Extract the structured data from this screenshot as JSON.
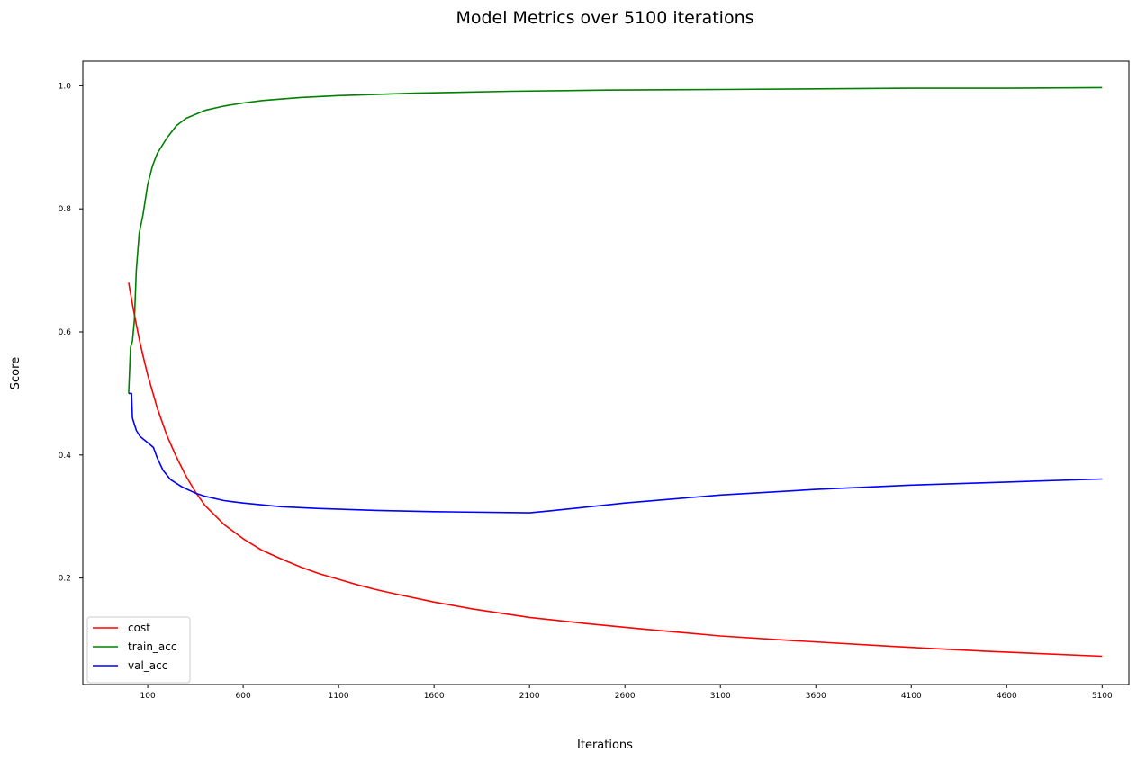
{
  "chart_data": {
    "type": "line",
    "title": "Model Metrics over 5100 iterations",
    "xlabel": "Iterations",
    "ylabel": "Score",
    "xlim": [
      -240,
      5240
    ],
    "ylim": [
      0.027,
      1.04
    ],
    "grid": false,
    "legend_position": "bottom-left",
    "x_ticks": [
      100,
      600,
      1100,
      1600,
      2100,
      2600,
      3100,
      3600,
      4100,
      4600,
      5100
    ],
    "x_tick_labels": [
      "100",
      "600",
      "1100",
      "1600",
      "2100",
      "2600",
      "3100",
      "3600",
      "4100",
      "4600",
      "5100"
    ],
    "y_ticks": [
      0.2,
      0.4,
      0.6,
      0.8,
      1.0
    ],
    "y_tick_labels": [
      "0.2",
      "0.4",
      "0.6",
      "0.8",
      "1.0"
    ],
    "series": [
      {
        "name": "cost",
        "color": "#ff0000",
        "points": [
          [
            0,
            0.68
          ],
          [
            20,
            0.645
          ],
          [
            40,
            0.612
          ],
          [
            60,
            0.582
          ],
          [
            80,
            0.555
          ],
          [
            100,
            0.53
          ],
          [
            150,
            0.476
          ],
          [
            200,
            0.432
          ],
          [
            250,
            0.397
          ],
          [
            300,
            0.366
          ],
          [
            350,
            0.34
          ],
          [
            400,
            0.318
          ],
          [
            500,
            0.287
          ],
          [
            600,
            0.264
          ],
          [
            700,
            0.245
          ],
          [
            800,
            0.231
          ],
          [
            900,
            0.218
          ],
          [
            1000,
            0.207
          ],
          [
            1100,
            0.198
          ],
          [
            1200,
            0.189
          ],
          [
            1300,
            0.181
          ],
          [
            1400,
            0.174
          ],
          [
            1600,
            0.161
          ],
          [
            1800,
            0.15
          ],
          [
            2100,
            0.136
          ],
          [
            2400,
            0.126
          ],
          [
            2700,
            0.117
          ],
          [
            3100,
            0.106
          ],
          [
            3500,
            0.098
          ],
          [
            4000,
            0.089
          ],
          [
            4500,
            0.081
          ],
          [
            5100,
            0.073
          ]
        ]
      },
      {
        "name": "train_acc",
        "color": "#008000",
        "points": [
          [
            0,
            0.5
          ],
          [
            10,
            0.575
          ],
          [
            20,
            0.585
          ],
          [
            30,
            0.62
          ],
          [
            40,
            0.7
          ],
          [
            55,
            0.76
          ],
          [
            75,
            0.79
          ],
          [
            100,
            0.84
          ],
          [
            125,
            0.87
          ],
          [
            150,
            0.89
          ],
          [
            200,
            0.915
          ],
          [
            250,
            0.935
          ],
          [
            300,
            0.947
          ],
          [
            400,
            0.96
          ],
          [
            500,
            0.967
          ],
          [
            600,
            0.972
          ],
          [
            700,
            0.976
          ],
          [
            900,
            0.981
          ],
          [
            1100,
            0.984
          ],
          [
            1500,
            0.988
          ],
          [
            2000,
            0.991
          ],
          [
            2500,
            0.993
          ],
          [
            3100,
            0.994
          ],
          [
            3600,
            0.995
          ],
          [
            4100,
            0.996
          ],
          [
            4600,
            0.996
          ],
          [
            5100,
            0.997
          ]
        ]
      },
      {
        "name": "val_acc",
        "color": "#0000ff",
        "points": [
          [
            0,
            0.5
          ],
          [
            15,
            0.5
          ],
          [
            20,
            0.46
          ],
          [
            40,
            0.44
          ],
          [
            60,
            0.43
          ],
          [
            80,
            0.425
          ],
          [
            100,
            0.42
          ],
          [
            120,
            0.415
          ],
          [
            130,
            0.412
          ],
          [
            150,
            0.395
          ],
          [
            180,
            0.375
          ],
          [
            220,
            0.36
          ],
          [
            280,
            0.348
          ],
          [
            350,
            0.338
          ],
          [
            400,
            0.333
          ],
          [
            500,
            0.326
          ],
          [
            600,
            0.322
          ],
          [
            800,
            0.316
          ],
          [
            1000,
            0.313
          ],
          [
            1300,
            0.31
          ],
          [
            1600,
            0.308
          ],
          [
            2100,
            0.306
          ],
          [
            2200,
            0.309
          ],
          [
            2600,
            0.322
          ],
          [
            3100,
            0.335
          ],
          [
            3600,
            0.344
          ],
          [
            4100,
            0.351
          ],
          [
            4600,
            0.356
          ],
          [
            5100,
            0.361
          ]
        ]
      }
    ]
  }
}
